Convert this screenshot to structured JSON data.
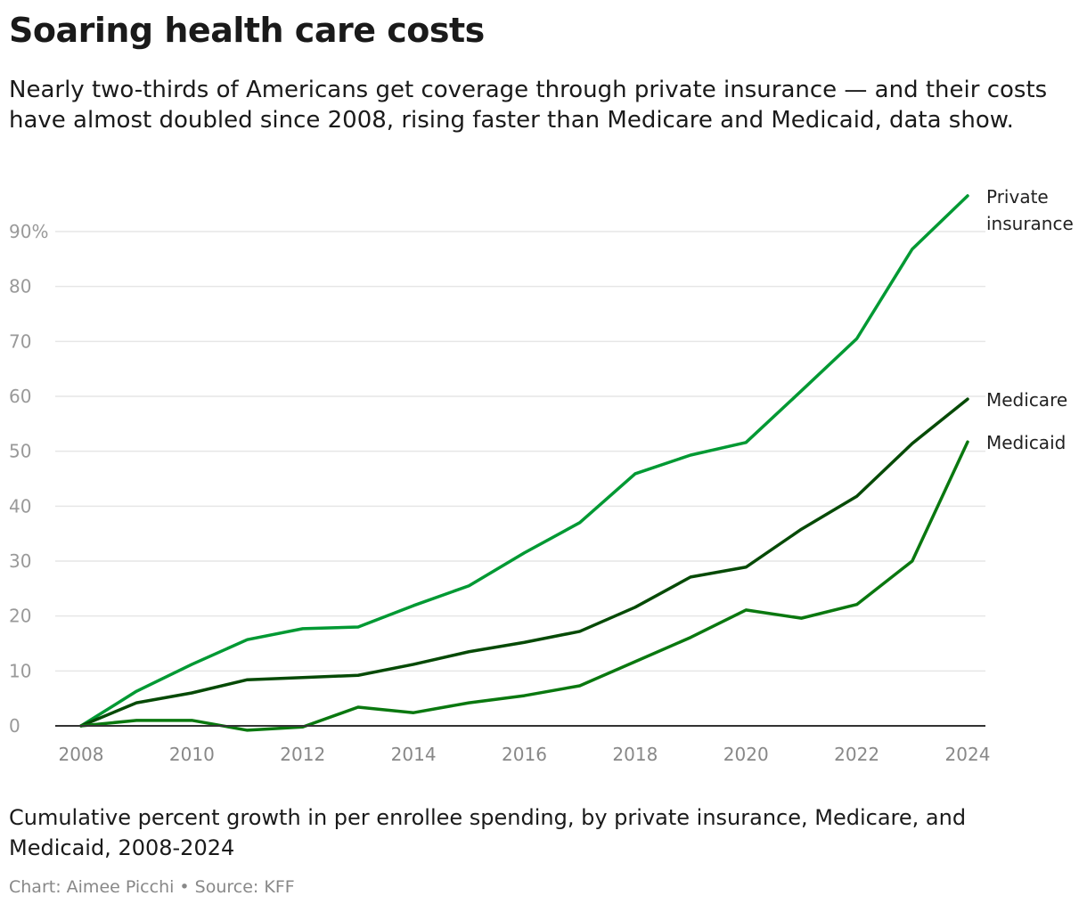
{
  "title": "Soaring health care costs",
  "subtitle": "Nearly two-thirds of Americans get coverage through private insurance — and their costs have almost doubled since 2008, rising faster than Medicare and Medicaid, data show.",
  "caption": "Cumulative percent growth in per enrollee spending, by private insurance, Medicare, and Medicaid, 2008-2024",
  "credit": "Chart: Aimee Picchi • Source: KFF",
  "chart_data": {
    "type": "line",
    "title": "Soaring health care costs",
    "xlabel": "",
    "ylabel": "",
    "xlim": [
      2008,
      2024
    ],
    "ylim": [
      0,
      90
    ],
    "grid": true,
    "legend": "direct labels at line ends (right)",
    "x": [
      2008,
      2009,
      2010,
      2011,
      2012,
      2013,
      2014,
      2015,
      2016,
      2017,
      2018,
      2019,
      2020,
      2021,
      2022,
      2023,
      2024
    ],
    "x_ticks": [
      "2008",
      "2010",
      "2012",
      "2014",
      "2016",
      "2018",
      "2020",
      "2022",
      "2024"
    ],
    "y_ticks": [
      "0",
      "10",
      "20",
      "30",
      "40",
      "50",
      "60",
      "70",
      "80",
      "90%"
    ],
    "series": [
      {
        "name": "Private insurance",
        "label_lines": [
          "Private",
          "insurance"
        ],
        "color": "#009933",
        "values": [
          0,
          6.3,
          11.2,
          15.7,
          17.7,
          18.0,
          21.9,
          25.5,
          31.5,
          37.0,
          45.9,
          49.3,
          51.6,
          61.0,
          70.5,
          86.8,
          96.5
        ]
      },
      {
        "name": "Medicare",
        "label_lines": [
          "Medicare"
        ],
        "color": "#064a06",
        "values": [
          0,
          4.2,
          6.0,
          8.4,
          8.8,
          9.2,
          11.2,
          13.5,
          15.2,
          17.2,
          21.6,
          27.1,
          28.9,
          35.8,
          41.8,
          51.4,
          59.5
        ]
      },
      {
        "name": "Medicaid",
        "label_lines": [
          "Medicaid"
        ],
        "color": "#0a780f",
        "values": [
          0,
          1.0,
          1.0,
          -0.8,
          -0.2,
          3.4,
          2.4,
          4.2,
          5.5,
          7.3,
          11.7,
          16.1,
          21.1,
          19.6,
          22.1,
          30.0,
          51.7
        ]
      }
    ]
  }
}
